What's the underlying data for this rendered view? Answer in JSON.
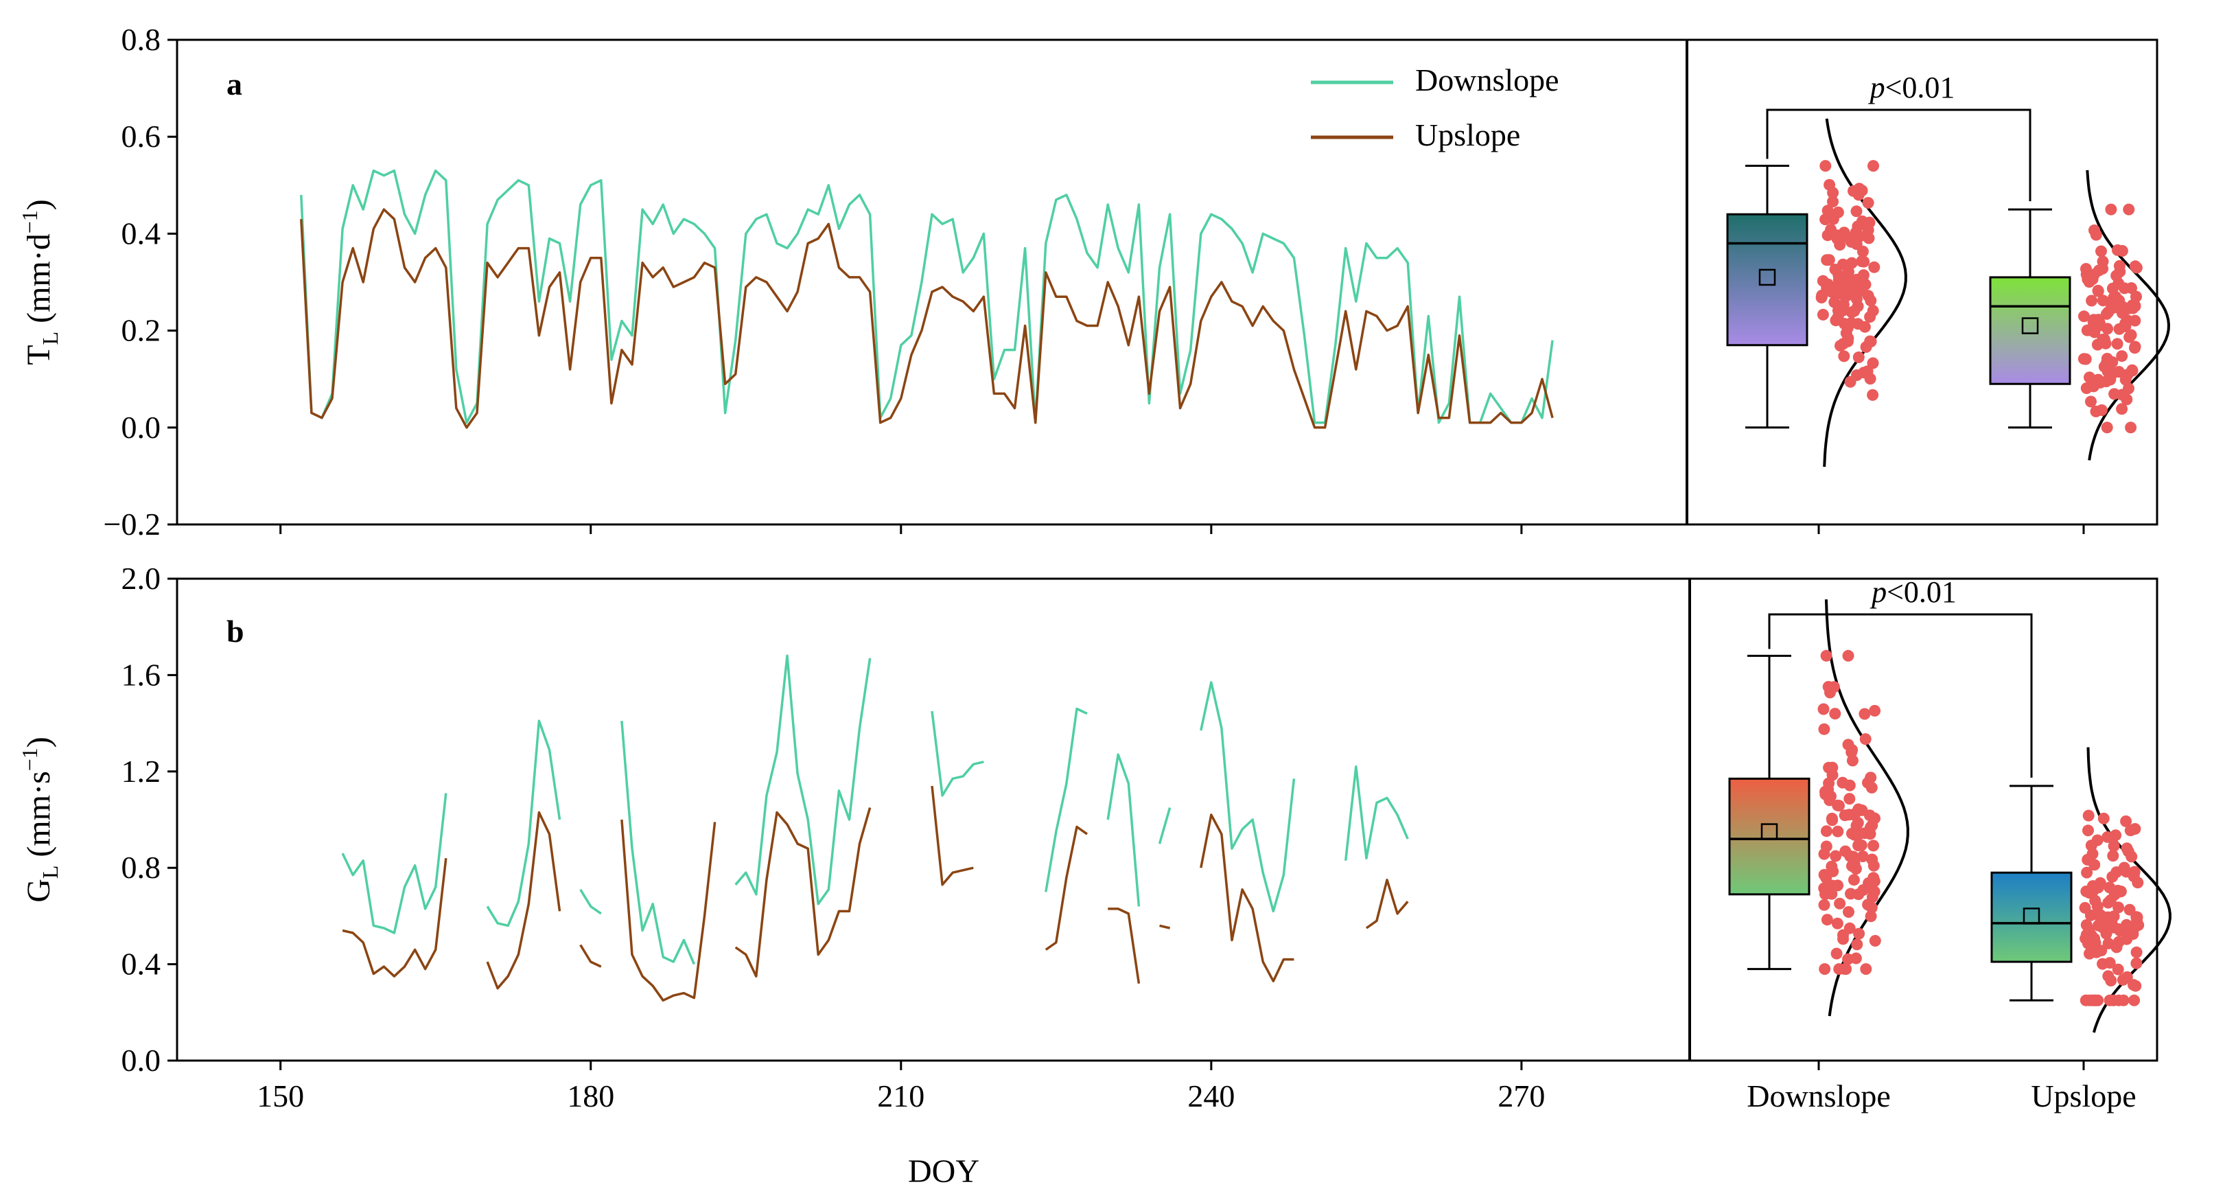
{
  "colors": {
    "downslope": "#4fcfa2",
    "upslope": "#8b4513",
    "scatter": "#ea5b5b",
    "box_a_down_top": "#1f6f6b",
    "box_a_down_bottom": "#a98be6",
    "box_a_up_top": "#7fe23a",
    "box_a_up_bottom": "#a98be6",
    "box_b_down_top": "#ee5f43",
    "box_b_down_bottom": "#6fc978",
    "box_b_up_top": "#1e7fc4",
    "box_b_up_bottom": "#6fc978"
  },
  "xaxis": {
    "label": "DOY",
    "ticks": [
      150,
      180,
      210,
      240,
      270
    ],
    "range": [
      140,
      286
    ]
  },
  "legend": {
    "downslope": "Downslope",
    "upslope": "Upslope"
  },
  "chart_data": [
    {
      "panel": "a",
      "type": "line",
      "ylabel_main": "T",
      "ylabel_sub": "L",
      "ylabel_unit": " (mm·d",
      "ylabel_sup": "−1",
      "ylabel_close": ")",
      "ylim": [
        -0.2,
        0.8
      ],
      "yticks": [
        -0.2,
        0.0,
        0.2,
        0.4,
        0.6,
        0.8
      ],
      "ytick_labels": [
        "−0.2",
        "0.0",
        "0.2",
        "0.4",
        "0.6",
        "0.8"
      ],
      "x": [
        152,
        153,
        154,
        155,
        156,
        157,
        158,
        159,
        160,
        161,
        162,
        163,
        164,
        165,
        166,
        167,
        168,
        169,
        170,
        171,
        172,
        173,
        174,
        175,
        176,
        177,
        178,
        179,
        180,
        181,
        182,
        183,
        184,
        185,
        186,
        187,
        188,
        189,
        190,
        191,
        192,
        193,
        194,
        195,
        196,
        197,
        198,
        199,
        200,
        201,
        202,
        203,
        204,
        205,
        206,
        207,
        208,
        209,
        210,
        211,
        212,
        213,
        214,
        215,
        216,
        217,
        218,
        219,
        220,
        221,
        222,
        223,
        224,
        225,
        226,
        227,
        228,
        229,
        230,
        231,
        232,
        233,
        234,
        235,
        236,
        237,
        238,
        239,
        240,
        241,
        242,
        243,
        244,
        245,
        246,
        247,
        248,
        249,
        250,
        251,
        252,
        253,
        254,
        255,
        256,
        257,
        258,
        259,
        260,
        261,
        262,
        263,
        264,
        265,
        266,
        267,
        268,
        269,
        270,
        271,
        272,
        273
      ],
      "series": [
        {
          "name": "Downslope",
          "values": [
            0.48,
            0.03,
            0.02,
            0.07,
            0.41,
            0.5,
            0.45,
            0.53,
            0.52,
            0.53,
            0.44,
            0.4,
            0.48,
            0.53,
            0.51,
            0.12,
            0.01,
            0.05,
            0.42,
            0.47,
            0.49,
            0.51,
            0.5,
            0.26,
            0.39,
            0.38,
            0.26,
            0.46,
            0.5,
            0.51,
            0.14,
            0.22,
            0.19,
            0.45,
            0.42,
            0.46,
            0.4,
            0.43,
            0.42,
            0.4,
            0.37,
            0.03,
            0.18,
            0.4,
            0.43,
            0.44,
            0.38,
            0.37,
            0.4,
            0.45,
            0.44,
            0.5,
            0.41,
            0.46,
            0.48,
            0.44,
            0.02,
            0.06,
            0.17,
            0.19,
            0.3,
            0.44,
            0.42,
            0.43,
            0.32,
            0.35,
            0.4,
            0.1,
            0.16,
            0.16,
            0.37,
            0.01,
            0.38,
            0.47,
            0.48,
            0.43,
            0.36,
            0.33,
            0.46,
            0.37,
            0.32,
            0.46,
            0.05,
            0.33,
            0.44,
            0.07,
            0.16,
            0.4,
            0.44,
            0.43,
            0.41,
            0.38,
            0.32,
            0.4,
            0.39,
            0.38,
            0.35,
            0.19,
            0.01,
            0.01,
            0.17,
            0.37,
            0.26,
            0.38,
            0.35,
            0.35,
            0.37,
            0.34,
            0.03,
            0.23,
            0.01,
            0.05,
            0.27,
            0.01,
            0.01,
            0.07,
            0.04,
            0.01,
            0.01,
            0.06,
            0.02,
            0.18
          ]
        },
        {
          "name": "Upslope",
          "values": [
            0.43,
            0.03,
            0.02,
            0.06,
            0.3,
            0.37,
            0.3,
            0.41,
            0.45,
            0.43,
            0.33,
            0.3,
            0.35,
            0.37,
            0.33,
            0.04,
            0.0,
            0.03,
            0.34,
            0.31,
            0.34,
            0.37,
            0.37,
            0.19,
            0.29,
            0.32,
            0.12,
            0.3,
            0.35,
            0.35,
            0.05,
            0.16,
            0.13,
            0.34,
            0.31,
            0.33,
            0.29,
            0.3,
            0.31,
            0.34,
            0.33,
            0.09,
            0.11,
            0.29,
            0.31,
            0.3,
            0.27,
            0.24,
            0.28,
            0.38,
            0.39,
            0.42,
            0.33,
            0.31,
            0.31,
            0.28,
            0.01,
            0.02,
            0.06,
            0.15,
            0.2,
            0.28,
            0.29,
            0.27,
            0.26,
            0.24,
            0.27,
            0.07,
            0.07,
            0.04,
            0.21,
            0.01,
            0.32,
            0.27,
            0.27,
            0.22,
            0.21,
            0.21,
            0.3,
            0.25,
            0.17,
            0.27,
            0.07,
            0.24,
            0.29,
            0.04,
            0.09,
            0.22,
            0.27,
            0.3,
            0.26,
            0.25,
            0.21,
            0.25,
            0.22,
            0.2,
            0.12,
            0.06,
            0.0,
            0.0,
            0.12,
            0.24,
            0.12,
            0.24,
            0.23,
            0.2,
            0.21,
            0.25,
            0.03,
            0.15,
            0.02,
            0.02,
            0.19,
            0.01,
            0.01,
            0.01,
            0.03,
            0.01,
            0.01,
            0.03,
            0.1,
            0.02
          ]
        }
      ],
      "boxplots": [
        {
          "group": "Downslope",
          "whisker_low": 0.0,
          "q1": 0.17,
          "median": 0.38,
          "q3": 0.44,
          "whisker_high": 0.54,
          "mean": 0.31
        },
        {
          "group": "Upslope",
          "whisker_low": 0.0,
          "q1": 0.09,
          "median": 0.25,
          "q3": 0.31,
          "whisker_high": 0.45,
          "mean": 0.21
        }
      ],
      "significance": {
        "prefix": "p",
        "rest": "<0.01"
      }
    },
    {
      "panel": "b",
      "type": "line",
      "ylabel_main": "G",
      "ylabel_sub": "L",
      "ylabel_unit": " (mm·s",
      "ylabel_sup": "−1",
      "ylabel_close": ")",
      "ylim": [
        0.0,
        2.0
      ],
      "yticks": [
        0.0,
        0.4,
        0.8,
        1.2,
        1.6,
        2.0
      ],
      "ytick_labels": [
        "0.0",
        "0.4",
        "0.8",
        "1.2",
        "1.6",
        "2.0"
      ],
      "series": [
        {
          "name": "Downslope",
          "segments": [
            {
              "x": [
                156,
                157,
                158,
                159,
                160,
                161,
                162,
                163,
                164,
                165,
                166
              ],
              "values": [
                0.86,
                0.77,
                0.83,
                0.56,
                0.55,
                0.53,
                0.72,
                0.81,
                0.63,
                0.72,
                1.11
              ]
            },
            {
              "x": [
                170,
                171,
                172,
                173,
                174,
                175,
                176,
                177
              ],
              "values": [
                0.64,
                0.57,
                0.56,
                0.66,
                0.9,
                1.41,
                1.29,
                1.0
              ]
            },
            {
              "x": [
                179,
                180,
                181
              ],
              "values": [
                0.71,
                0.64,
                0.61
              ]
            },
            {
              "x": [
                183,
                184,
                185,
                186,
                187,
                188,
                189,
                190
              ],
              "values": [
                1.41,
                0.88,
                0.54,
                0.65,
                0.43,
                0.41,
                0.5,
                0.4
              ]
            },
            {
              "x": [
                194,
                195,
                196,
                197,
                198,
                199,
                200,
                201,
                202,
                203,
                204,
                205,
                206,
                207
              ],
              "values": [
                0.73,
                0.78,
                0.69,
                1.1,
                1.28,
                1.68,
                1.19,
                1.0,
                0.65,
                0.71,
                1.12,
                1.0,
                1.38,
                1.67
              ]
            },
            {
              "x": [
                213,
                214,
                215,
                216,
                217,
                218
              ],
              "values": [
                1.45,
                1.1,
                1.17,
                1.18,
                1.23,
                1.24
              ]
            },
            {
              "x": [
                224,
                225,
                226,
                227,
                228
              ],
              "values": [
                0.7,
                0.95,
                1.15,
                1.46,
                1.44
              ]
            },
            {
              "x": [
                230,
                231,
                232,
                233
              ],
              "values": [
                1.0,
                1.27,
                1.15,
                0.64
              ]
            },
            {
              "x": [
                235,
                236
              ],
              "values": [
                0.9,
                1.05
              ]
            },
            {
              "x": [
                239,
                240,
                241,
                242,
                243,
                244,
                245,
                246,
                247,
                248
              ],
              "values": [
                1.37,
                1.57,
                1.38,
                0.88,
                0.96,
                1.0,
                0.78,
                0.62,
                0.77,
                1.17
              ]
            },
            {
              "x": [
                253,
                254,
                255,
                256,
                257,
                258,
                259
              ],
              "values": [
                0.83,
                1.22,
                0.84,
                1.07,
                1.09,
                1.02,
                0.92
              ]
            }
          ]
        },
        {
          "name": "Upslope",
          "segments": [
            {
              "x": [
                156,
                157,
                158,
                159,
                160,
                161,
                162,
                163,
                164,
                165,
                166
              ],
              "values": [
                0.54,
                0.53,
                0.49,
                0.36,
                0.39,
                0.35,
                0.39,
                0.46,
                0.38,
                0.46,
                0.84
              ]
            },
            {
              "x": [
                170,
                171,
                172,
                173,
                174,
                175,
                176,
                177
              ],
              "values": [
                0.41,
                0.3,
                0.35,
                0.44,
                0.65,
                1.03,
                0.94,
                0.62
              ]
            },
            {
              "x": [
                179,
                180,
                181
              ],
              "values": [
                0.48,
                0.41,
                0.39
              ]
            },
            {
              "x": [
                183,
                184,
                185,
                186,
                187,
                188,
                189,
                190,
                191,
                192
              ],
              "values": [
                1.0,
                0.44,
                0.35,
                0.31,
                0.25,
                0.27,
                0.28,
                0.26,
                0.6,
                0.99
              ]
            },
            {
              "x": [
                194,
                195,
                196,
                197,
                198,
                199,
                200,
                201,
                202,
                203,
                204,
                205,
                206,
                207
              ],
              "values": [
                0.47,
                0.44,
                0.35,
                0.75,
                1.03,
                0.98,
                0.9,
                0.88,
                0.44,
                0.5,
                0.62,
                0.62,
                0.9,
                1.05
              ]
            },
            {
              "x": [
                213,
                214,
                215,
                216,
                217
              ],
              "values": [
                1.14,
                0.73,
                0.78,
                0.79,
                0.8
              ]
            },
            {
              "x": [
                224,
                225,
                226,
                227,
                228
              ],
              "values": [
                0.46,
                0.49,
                0.76,
                0.97,
                0.94
              ]
            },
            {
              "x": [
                230,
                231,
                232,
                233
              ],
              "values": [
                0.63,
                0.63,
                0.61,
                0.32
              ]
            },
            {
              "x": [
                235,
                236
              ],
              "values": [
                0.56,
                0.55
              ]
            },
            {
              "x": [
                239,
                240,
                241,
                242,
                243,
                244,
                245,
                246,
                247,
                248
              ],
              "values": [
                0.8,
                1.02,
                0.94,
                0.5,
                0.71,
                0.63,
                0.41,
                0.33,
                0.42,
                0.42
              ]
            },
            {
              "x": [
                255,
                256,
                257,
                258,
                259
              ],
              "values": [
                0.55,
                0.58,
                0.75,
                0.61,
                0.66
              ]
            }
          ]
        }
      ],
      "boxplots": [
        {
          "group": "Downslope",
          "whisker_low": 0.38,
          "q1": 0.69,
          "median": 0.92,
          "q3": 1.17,
          "whisker_high": 1.68,
          "mean": 0.95
        },
        {
          "group": "Upslope",
          "whisker_low": 0.25,
          "q1": 0.41,
          "median": 0.57,
          "q3": 0.78,
          "whisker_high": 1.14,
          "mean": 0.6
        }
      ],
      "significance": {
        "prefix": "p",
        "rest": "<0.01"
      }
    }
  ]
}
